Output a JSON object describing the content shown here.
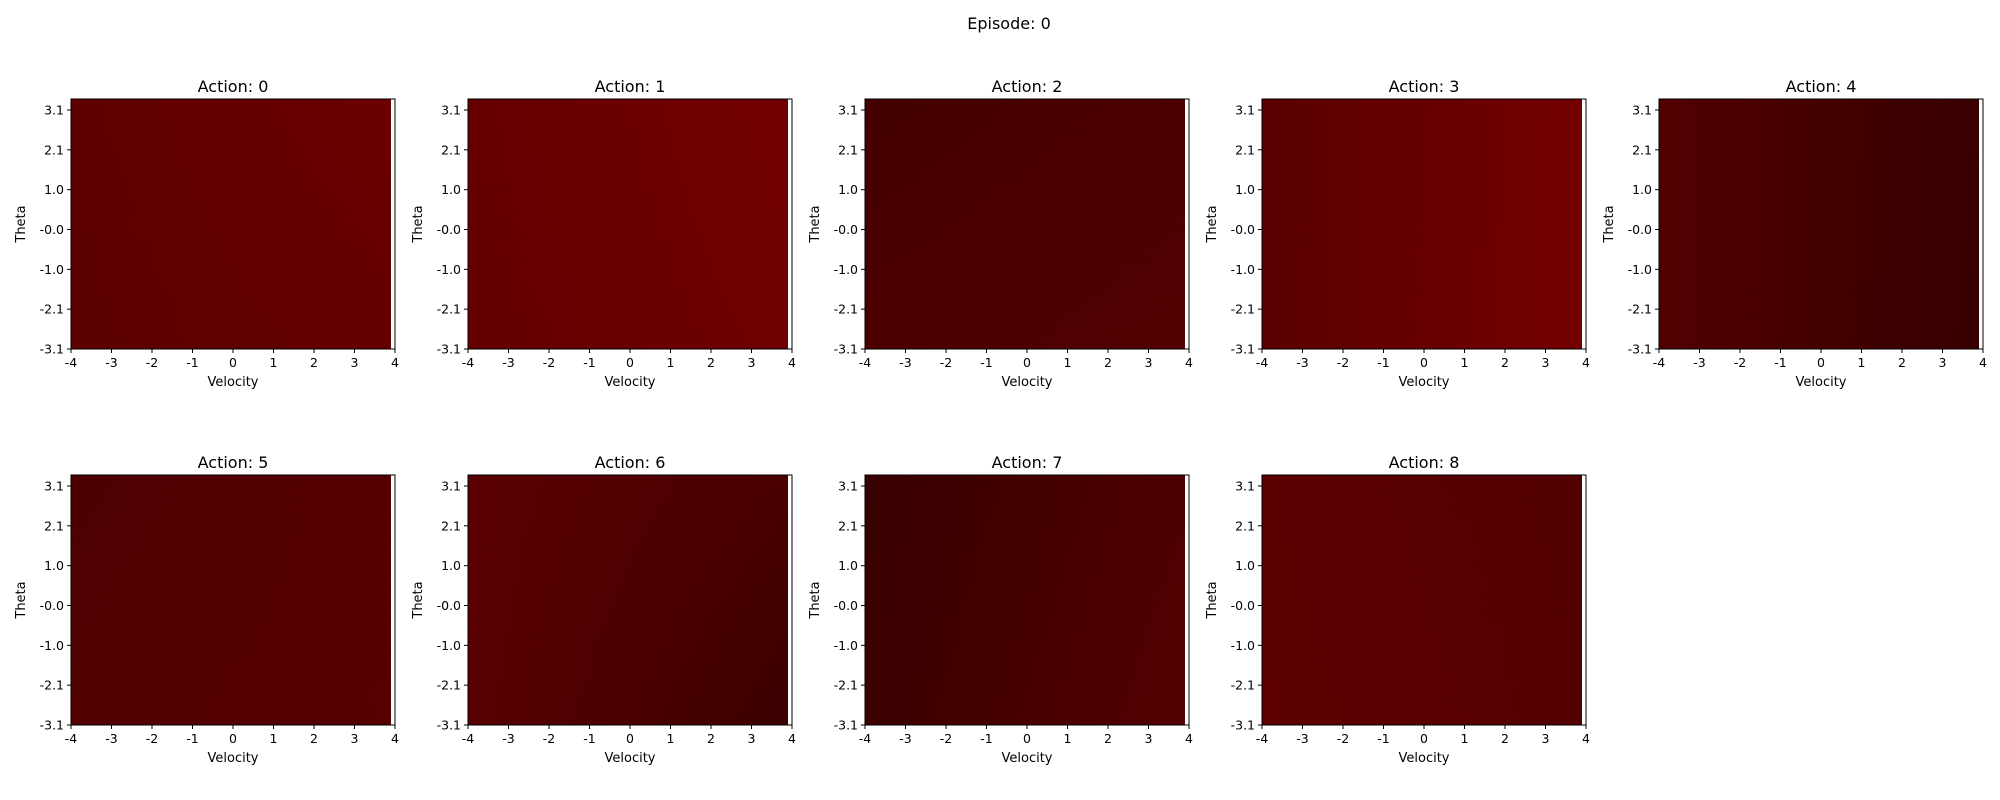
{
  "figure": {
    "suptitle": "Episode: 0"
  },
  "chart_data": [
    {
      "type": "heatmap",
      "title": "Action: 0",
      "xlabel": "Velocity",
      "ylabel": "Theta",
      "x_ticks": [
        "-4",
        "-3",
        "-2",
        "-1",
        "0",
        "1",
        "2",
        "3",
        "4"
      ],
      "y_ticks": [
        "3.1",
        "2.1",
        "1.0",
        "-0.0",
        "-1.0",
        "-2.1",
        "-3.1"
      ],
      "xlim": [
        -4,
        4
      ],
      "ylim": [
        -3.1,
        3.1
      ],
      "corner_colors": {
        "top_left": "#5e0000",
        "top_right": "#6c0000",
        "bottom_left": "#5c0000",
        "bottom_right": "#640000"
      }
    },
    {
      "type": "heatmap",
      "title": "Action: 1",
      "xlabel": "Velocity",
      "ylabel": "Theta",
      "x_ticks": [
        "-4",
        "-3",
        "-2",
        "-1",
        "0",
        "1",
        "2",
        "3",
        "4"
      ],
      "y_ticks": [
        "3.1",
        "2.1",
        "1.0",
        "-0.0",
        "-1.0",
        "-2.1",
        "-3.1"
      ],
      "xlim": [
        -4,
        4
      ],
      "ylim": [
        -3.1,
        3.1
      ],
      "corner_colors": {
        "top_left": "#660000",
        "top_right": "#720000",
        "bottom_left": "#640000",
        "bottom_right": "#6e0000"
      }
    },
    {
      "type": "heatmap",
      "title": "Action: 2",
      "xlabel": "Velocity",
      "ylabel": "Theta",
      "x_ticks": [
        "-4",
        "-3",
        "-2",
        "-1",
        "0",
        "1",
        "2",
        "3",
        "4"
      ],
      "y_ticks": [
        "3.1",
        "2.1",
        "1.0",
        "-0.0",
        "-1.0",
        "-2.1",
        "-3.1"
      ],
      "xlim": [
        -4,
        4
      ],
      "ylim": [
        -3.1,
        3.1
      ],
      "corner_colors": {
        "top_left": "#440000",
        "top_right": "#4c0000",
        "bottom_left": "#4c0000",
        "bottom_right": "#520000"
      }
    },
    {
      "type": "heatmap",
      "title": "Action: 3",
      "xlabel": "Velocity",
      "ylabel": "Theta",
      "x_ticks": [
        "-4",
        "-3",
        "-2",
        "-1",
        "0",
        "1",
        "2",
        "3",
        "4"
      ],
      "y_ticks": [
        "3.1",
        "2.1",
        "1.0",
        "-0.0",
        "-1.0",
        "-2.1",
        "-3.1"
      ],
      "xlim": [
        -4,
        4
      ],
      "ylim": [
        -3.1,
        3.1
      ],
      "corner_colors": {
        "top_left": "#5a0000",
        "top_right": "#730000",
        "bottom_left": "#5a0000",
        "bottom_right": "#740000"
      }
    },
    {
      "type": "heatmap",
      "title": "Action: 4",
      "xlabel": "Velocity",
      "ylabel": "Theta",
      "x_ticks": [
        "-4",
        "-3",
        "-2",
        "-1",
        "0",
        "1",
        "2",
        "3",
        "4"
      ],
      "y_ticks": [
        "3.1",
        "2.1",
        "1.0",
        "-0.0",
        "-1.0",
        "-2.1",
        "-3.1"
      ],
      "xlim": [
        -4,
        4
      ],
      "ylim": [
        -3.1,
        3.1
      ],
      "corner_colors": {
        "top_left": "#520000",
        "top_right": "#380000",
        "bottom_left": "#520000",
        "bottom_right": "#360000"
      }
    },
    {
      "type": "heatmap",
      "title": "Action: 5",
      "xlabel": "Velocity",
      "ylabel": "Theta",
      "x_ticks": [
        "-4",
        "-3",
        "-2",
        "-1",
        "0",
        "1",
        "2",
        "3",
        "4"
      ],
      "y_ticks": [
        "3.1",
        "2.1",
        "1.0",
        "-0.0",
        "-1.0",
        "-2.1",
        "-3.1"
      ],
      "xlim": [
        -4,
        4
      ],
      "ylim": [
        -3.1,
        3.1
      ],
      "corner_colors": {
        "top_left": "#4e0000",
        "top_right": "#560000",
        "bottom_left": "#520000",
        "bottom_right": "#560000"
      }
    },
    {
      "type": "heatmap",
      "title": "Action: 6",
      "xlabel": "Velocity",
      "ylabel": "Theta",
      "x_ticks": [
        "-4",
        "-3",
        "-2",
        "-1",
        "0",
        "1",
        "2",
        "3",
        "4"
      ],
      "y_ticks": [
        "3.1",
        "2.1",
        "1.0",
        "-0.0",
        "-1.0",
        "-2.1",
        "-3.1"
      ],
      "xlim": [
        -4,
        4
      ],
      "ylim": [
        -3.1,
        3.1
      ],
      "corner_colors": {
        "top_left": "#5a0000",
        "top_right": "#4a0000",
        "bottom_left": "#580000",
        "bottom_right": "#3c0000"
      }
    },
    {
      "type": "heatmap",
      "title": "Action: 7",
      "xlabel": "Velocity",
      "ylabel": "Theta",
      "x_ticks": [
        "-4",
        "-3",
        "-2",
        "-1",
        "0",
        "1",
        "2",
        "3",
        "4"
      ],
      "y_ticks": [
        "3.1",
        "2.1",
        "1.0",
        "-0.0",
        "-1.0",
        "-2.1",
        "-3.1"
      ],
      "xlim": [
        -4,
        4
      ],
      "ylim": [
        -3.1,
        3.1
      ],
      "corner_colors": {
        "top_left": "#380000",
        "top_right": "#4e0000",
        "bottom_left": "#3c0000",
        "bottom_right": "#540000"
      }
    },
    {
      "type": "heatmap",
      "title": "Action: 8",
      "xlabel": "Velocity",
      "ylabel": "Theta",
      "x_ticks": [
        "-4",
        "-3",
        "-2",
        "-1",
        "0",
        "1",
        "2",
        "3",
        "4"
      ],
      "y_ticks": [
        "3.1",
        "2.1",
        "1.0",
        "-0.0",
        "-1.0",
        "-2.1",
        "-3.1"
      ],
      "xlim": [
        -4,
        4
      ],
      "ylim": [
        -3.1,
        3.1
      ],
      "corner_colors": {
        "top_left": "#5c0000",
        "top_right": "#520000",
        "bottom_left": "#5e0000",
        "bottom_right": "#540000"
      }
    }
  ]
}
